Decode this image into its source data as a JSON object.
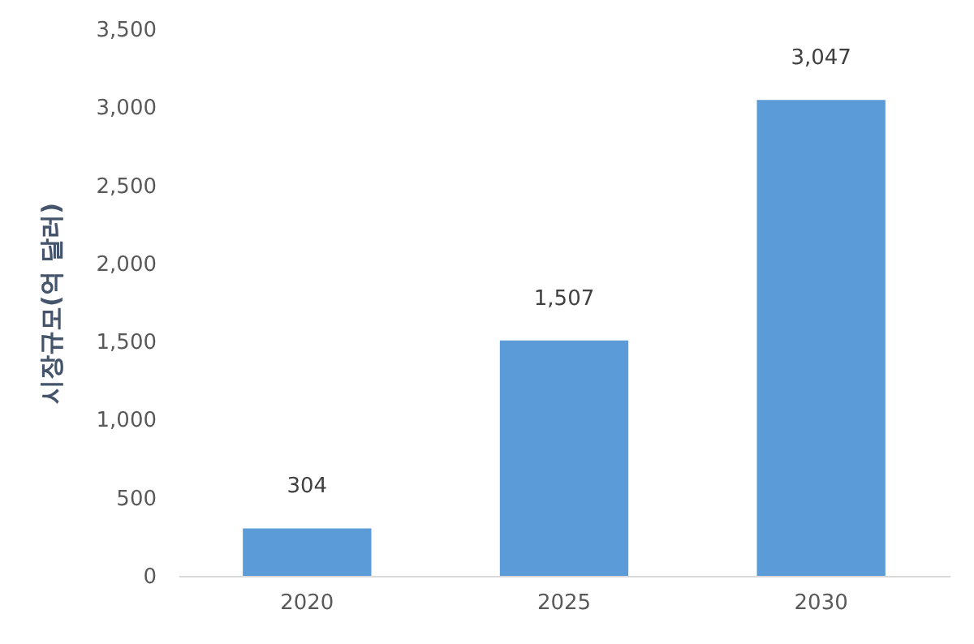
{
  "chart_data": {
    "type": "bar",
    "ylabel": "시장규모(억 달러)",
    "categories": [
      "2020",
      "2025",
      "2030"
    ],
    "values": [
      304,
      1507,
      3047
    ],
    "value_labels": [
      "304",
      "1,507",
      "3,047"
    ],
    "color": "#5b9bd8",
    "ylim": [
      0,
      3500
    ],
    "yticks": [
      0,
      {
        "value": 500,
        "label": "500"
      },
      {
        "value": 1000,
        "label": "1,000"
      },
      {
        "value": 1500,
        "label": "1,500"
      },
      {
        "value": 2000,
        "label": "2,000"
      },
      {
        "value": 2500,
        "label": "2,500"
      },
      {
        "value": 3000,
        "label": "3,000"
      },
      {
        "value": 3500,
        "label": "3,500"
      }
    ],
    "grid": false
  }
}
